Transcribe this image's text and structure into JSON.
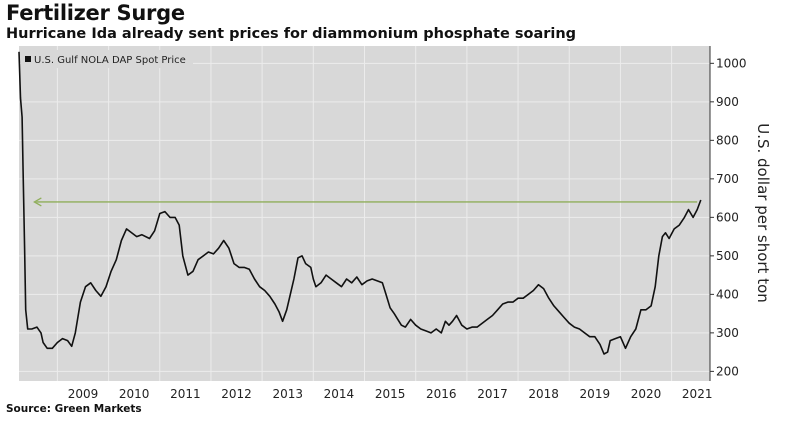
{
  "chart_data": {
    "type": "line",
    "title": "Fertilizer Surge",
    "subtitle": "Hurricane Ida already sent prices for diammonium phosphate soaring",
    "ylabel": "U.S. dollar per short ton",
    "source": "Source: Green Markets",
    "ylim": [
      175,
      1045
    ],
    "y_ticks": [
      200,
      300,
      400,
      500,
      600,
      700,
      800,
      900,
      1000
    ],
    "x_ticks": [
      "2009",
      "2010",
      "2011",
      "2012",
      "2013",
      "2014",
      "2015",
      "2016",
      "2017",
      "2018",
      "2019",
      "2020",
      "2021"
    ],
    "xlim": [
      2008.25,
      2021.75
    ],
    "grid": true,
    "legend_position": "top-left",
    "series": [
      {
        "name": "U.S. Gulf NOLA DAP Spot Price",
        "color": "#111111",
        "points": [
          [
            2008.25,
            1030
          ],
          [
            2008.28,
            910
          ],
          [
            2008.31,
            860
          ],
          [
            2008.33,
            720
          ],
          [
            2008.36,
            520
          ],
          [
            2008.38,
            360
          ],
          [
            2008.42,
            310
          ],
          [
            2008.5,
            310
          ],
          [
            2008.6,
            315
          ],
          [
            2008.68,
            300
          ],
          [
            2008.72,
            275
          ],
          [
            2008.8,
            260
          ],
          [
            2008.9,
            260
          ],
          [
            2009.0,
            275
          ],
          [
            2009.1,
            285
          ],
          [
            2009.2,
            280
          ],
          [
            2009.28,
            265
          ],
          [
            2009.35,
            300
          ],
          [
            2009.45,
            380
          ],
          [
            2009.55,
            420
          ],
          [
            2009.65,
            430
          ],
          [
            2009.75,
            410
          ],
          [
            2009.85,
            395
          ],
          [
            2009.95,
            420
          ],
          [
            2010.05,
            460
          ],
          [
            2010.15,
            490
          ],
          [
            2010.25,
            540
          ],
          [
            2010.35,
            570
          ],
          [
            2010.45,
            560
          ],
          [
            2010.55,
            550
          ],
          [
            2010.65,
            555
          ],
          [
            2010.8,
            545
          ],
          [
            2010.9,
            565
          ],
          [
            2011.0,
            610
          ],
          [
            2011.1,
            615
          ],
          [
            2011.2,
            600
          ],
          [
            2011.3,
            600
          ],
          [
            2011.38,
            580
          ],
          [
            2011.45,
            500
          ],
          [
            2011.55,
            450
          ],
          [
            2011.65,
            460
          ],
          [
            2011.75,
            490
          ],
          [
            2011.85,
            500
          ],
          [
            2011.95,
            510
          ],
          [
            2012.05,
            505
          ],
          [
            2012.15,
            520
          ],
          [
            2012.25,
            540
          ],
          [
            2012.35,
            520
          ],
          [
            2012.45,
            480
          ],
          [
            2012.55,
            470
          ],
          [
            2012.65,
            470
          ],
          [
            2012.75,
            465
          ],
          [
            2012.85,
            440
          ],
          [
            2012.95,
            420
          ],
          [
            2013.05,
            410
          ],
          [
            2013.15,
            395
          ],
          [
            2013.25,
            375
          ],
          [
            2013.33,
            355
          ],
          [
            2013.4,
            330
          ],
          [
            2013.48,
            360
          ],
          [
            2013.55,
            400
          ],
          [
            2013.62,
            440
          ],
          [
            2013.7,
            495
          ],
          [
            2013.78,
            500
          ],
          [
            2013.85,
            480
          ],
          [
            2013.95,
            470
          ],
          [
            2014.0,
            440
          ],
          [
            2014.05,
            420
          ],
          [
            2014.15,
            430
          ],
          [
            2014.25,
            450
          ],
          [
            2014.35,
            440
          ],
          [
            2014.45,
            430
          ],
          [
            2014.55,
            420
          ],
          [
            2014.65,
            440
          ],
          [
            2014.75,
            430
          ],
          [
            2014.85,
            445
          ],
          [
            2014.95,
            425
          ],
          [
            2015.05,
            435
          ],
          [
            2015.15,
            440
          ],
          [
            2015.25,
            435
          ],
          [
            2015.35,
            430
          ],
          [
            2015.42,
            400
          ],
          [
            2015.5,
            365
          ],
          [
            2015.58,
            350
          ],
          [
            2015.65,
            335
          ],
          [
            2015.72,
            320
          ],
          [
            2015.8,
            315
          ],
          [
            2015.9,
            335
          ],
          [
            2016.0,
            320
          ],
          [
            2016.1,
            310
          ],
          [
            2016.2,
            305
          ],
          [
            2016.3,
            300
          ],
          [
            2016.4,
            310
          ],
          [
            2016.5,
            300
          ],
          [
            2016.58,
            330
          ],
          [
            2016.65,
            320
          ],
          [
            2016.72,
            330
          ],
          [
            2016.8,
            345
          ],
          [
            2016.9,
            320
          ],
          [
            2017.0,
            310
          ],
          [
            2017.1,
            315
          ],
          [
            2017.2,
            315
          ],
          [
            2017.3,
            325
          ],
          [
            2017.4,
            335
          ],
          [
            2017.5,
            345
          ],
          [
            2017.6,
            360
          ],
          [
            2017.7,
            375
          ],
          [
            2017.8,
            380
          ],
          [
            2017.9,
            380
          ],
          [
            2018.0,
            390
          ],
          [
            2018.1,
            390
          ],
          [
            2018.2,
            400
          ],
          [
            2018.3,
            410
          ],
          [
            2018.4,
            425
          ],
          [
            2018.5,
            415
          ],
          [
            2018.6,
            390
          ],
          [
            2018.7,
            370
          ],
          [
            2018.8,
            355
          ],
          [
            2018.9,
            340
          ],
          [
            2019.0,
            325
          ],
          [
            2019.1,
            315
          ],
          [
            2019.2,
            310
          ],
          [
            2019.3,
            300
          ],
          [
            2019.4,
            290
          ],
          [
            2019.5,
            290
          ],
          [
            2019.6,
            270
          ],
          [
            2019.68,
            245
          ],
          [
            2019.75,
            250
          ],
          [
            2019.8,
            280
          ],
          [
            2019.9,
            285
          ],
          [
            2020.0,
            290
          ],
          [
            2020.1,
            260
          ],
          [
            2020.2,
            290
          ],
          [
            2020.3,
            310
          ],
          [
            2020.4,
            360
          ],
          [
            2020.5,
            360
          ],
          [
            2020.6,
            370
          ],
          [
            2020.68,
            420
          ],
          [
            2020.75,
            500
          ],
          [
            2020.82,
            550
          ],
          [
            2020.88,
            560
          ],
          [
            2020.95,
            545
          ],
          [
            2021.05,
            570
          ],
          [
            2021.15,
            580
          ],
          [
            2021.25,
            600
          ],
          [
            2021.33,
            620
          ],
          [
            2021.42,
            600
          ],
          [
            2021.5,
            620
          ],
          [
            2021.57,
            645
          ]
        ]
      }
    ],
    "annotations": [
      {
        "type": "arrow",
        "direction": "left",
        "color": "#8fae5a",
        "y": 640,
        "x_from": 2021.5,
        "x_to": 2008.55
      }
    ]
  }
}
